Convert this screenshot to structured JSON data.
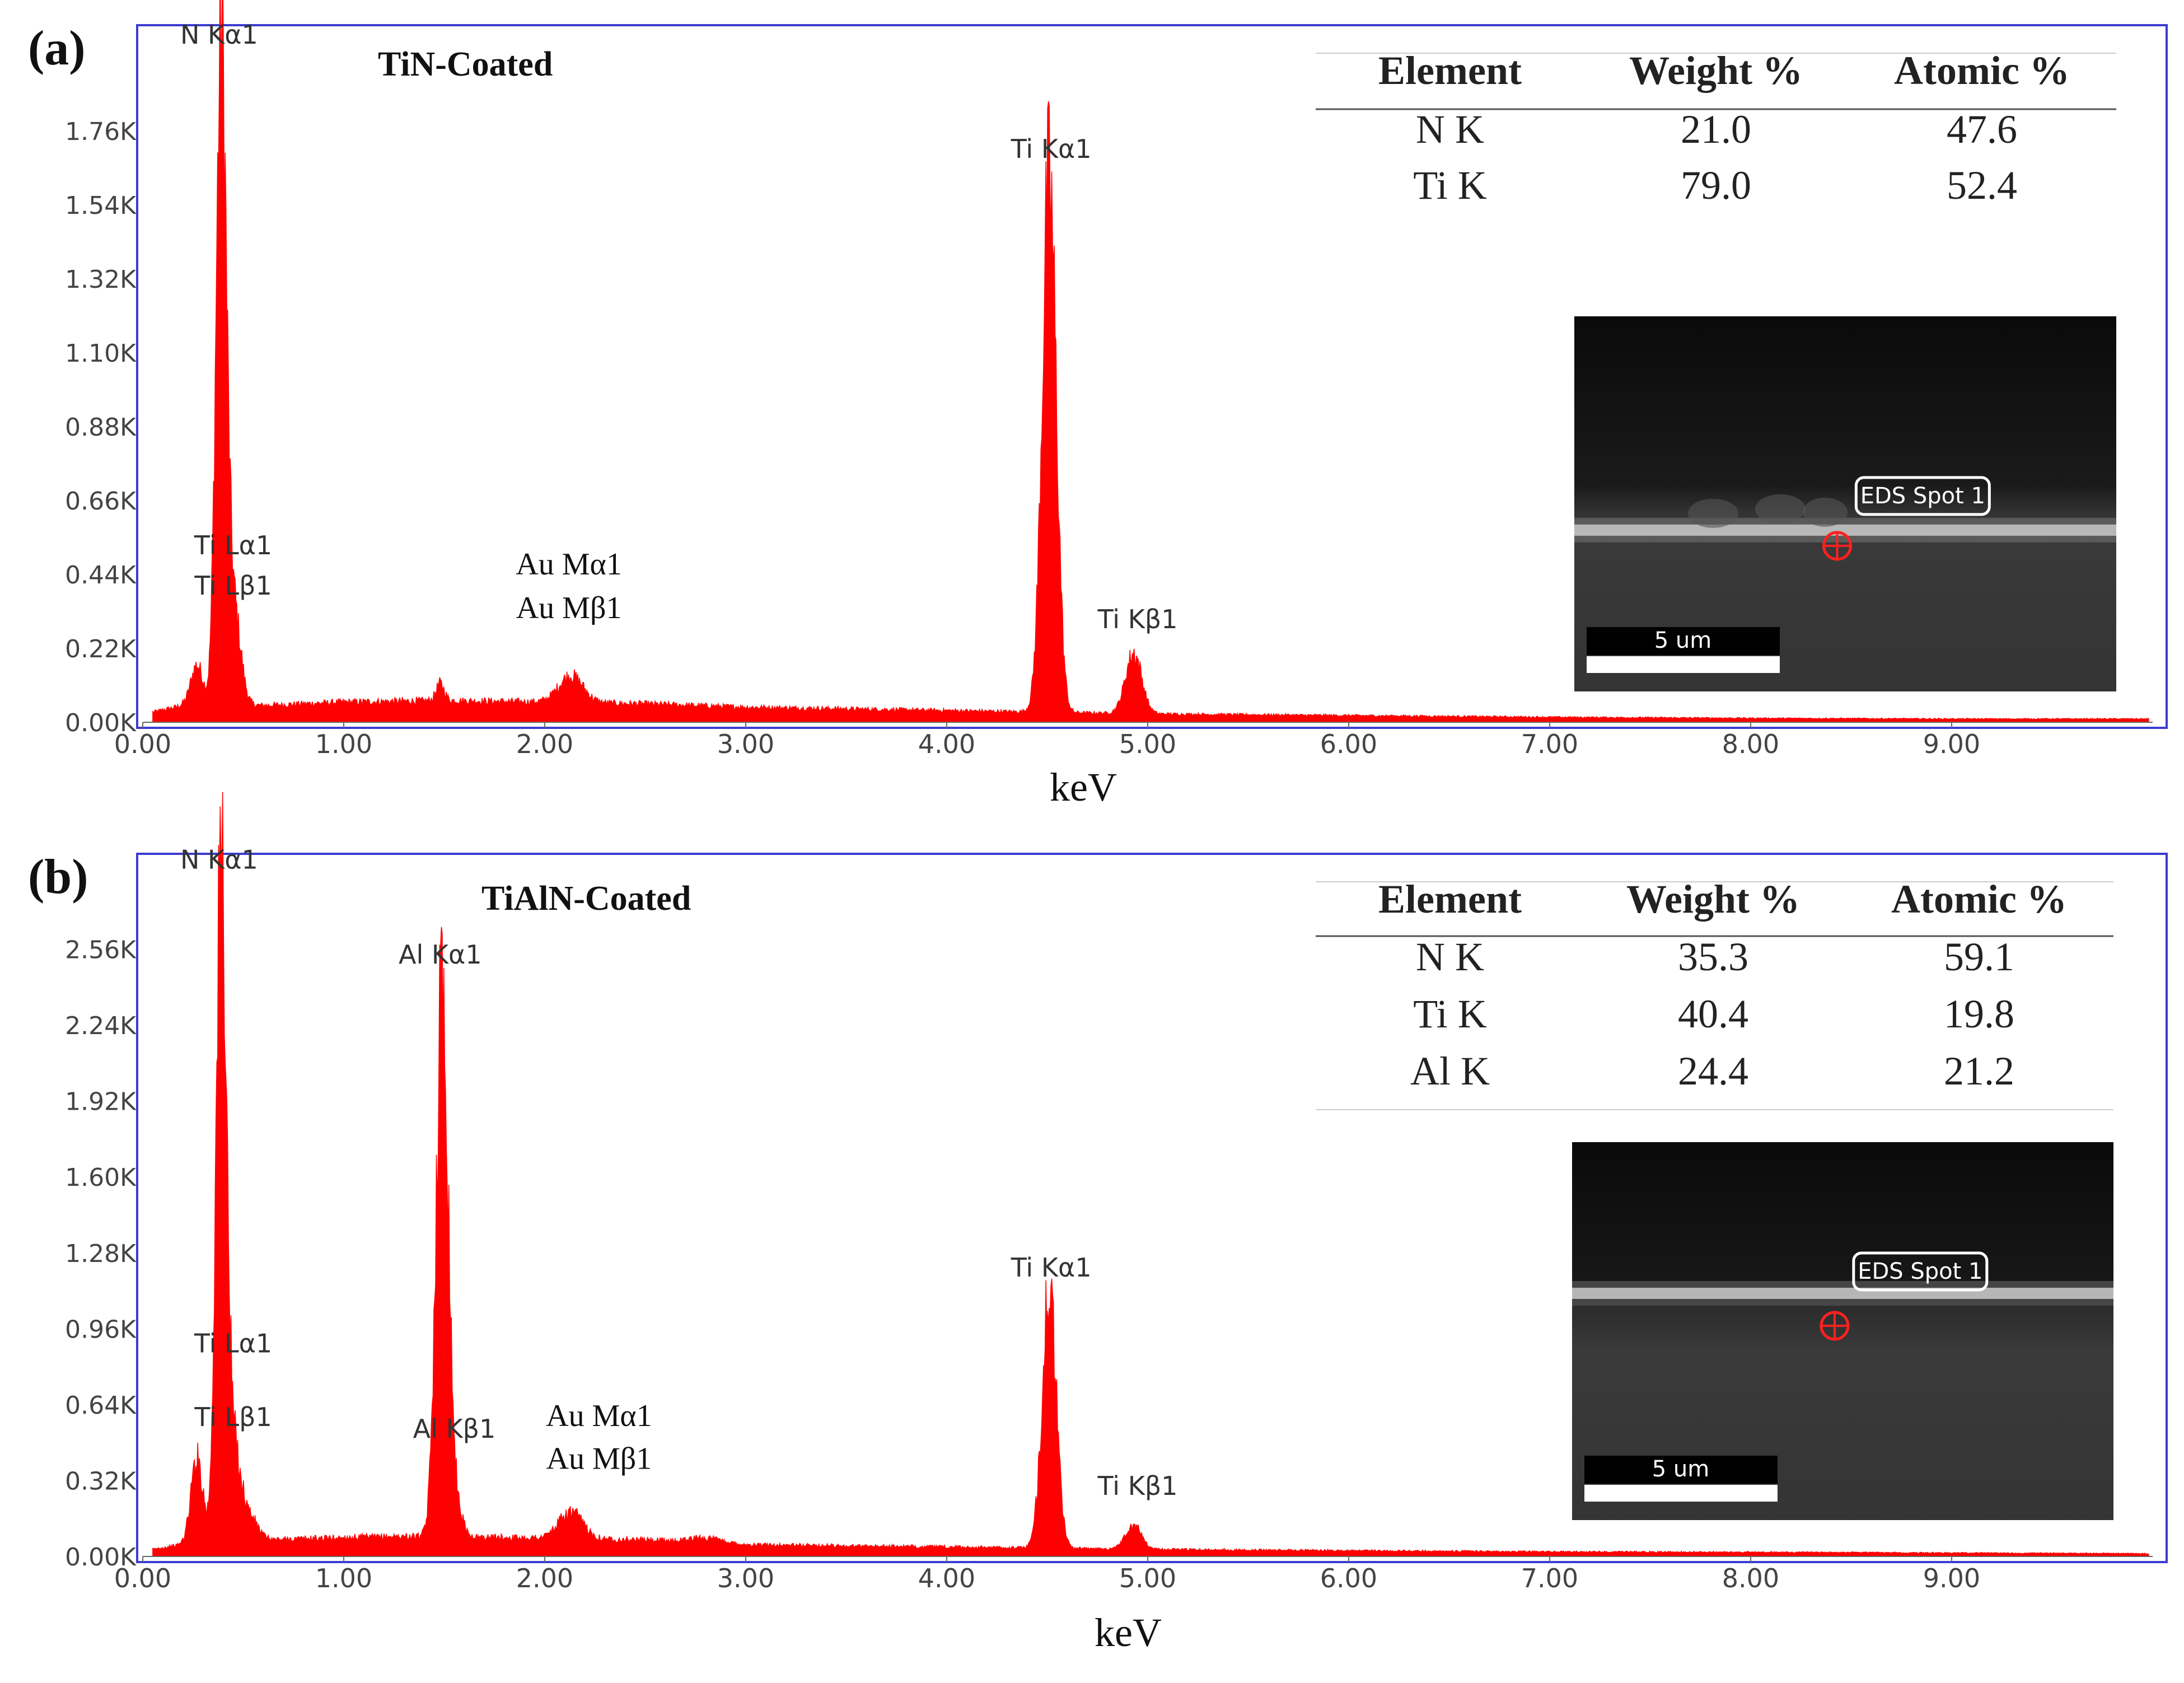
{
  "colors": {
    "spectrum": "#ff0000",
    "frame": "#3c3cd2",
    "axis": "#666666",
    "tick_text": "#444444",
    "peak_label": "#333333"
  },
  "chart_data": [
    {
      "panel_label": "(a)",
      "type": "area",
      "title": "TiN-Coated",
      "xlabel": "keV",
      "ylabel": "",
      "xlim": [
        0,
        10
      ],
      "ylim": [
        0,
        2.0
      ],
      "x_ticks": [
        "0.00",
        "1.00",
        "2.00",
        "3.00",
        "4.00",
        "5.00",
        "6.00",
        "7.00",
        "8.00",
        "9.00"
      ],
      "y_ticks": [
        "0.00K",
        "0.22K",
        "0.44K",
        "0.66K",
        "0.88K",
        "1.10K",
        "1.32K",
        "1.54K",
        "1.76K"
      ],
      "y_tick_values": [
        0,
        0.22,
        0.44,
        0.66,
        0.88,
        1.1,
        1.32,
        1.54,
        1.76
      ],
      "background": [
        [
          0.05,
          0.03
        ],
        [
          0.2,
          0.05
        ],
        [
          0.6,
          0.05
        ],
        [
          1.0,
          0.06
        ],
        [
          1.5,
          0.065
        ],
        [
          2.0,
          0.06
        ],
        [
          2.5,
          0.055
        ],
        [
          3.0,
          0.045
        ],
        [
          3.5,
          0.04
        ],
        [
          4.0,
          0.035
        ],
        [
          5.0,
          0.025
        ],
        [
          6.0,
          0.02
        ],
        [
          7.0,
          0.015
        ],
        [
          8.0,
          0.012
        ],
        [
          9.0,
          0.01
        ],
        [
          9.98,
          0.01
        ]
      ],
      "peaks": [
        {
          "x": 0.27,
          "y": 0.12,
          "width": 0.03
        },
        {
          "x": 0.39,
          "y": 1.94,
          "width": 0.025
        },
        {
          "x": 0.45,
          "y": 0.3,
          "width": 0.035
        },
        {
          "x": 1.48,
          "y": 0.05,
          "width": 0.02
        },
        {
          "x": 2.13,
          "y": 0.08,
          "width": 0.06
        },
        {
          "x": 4.51,
          "y": 1.58,
          "width": 0.035
        },
        {
          "x": 4.93,
          "y": 0.18,
          "width": 0.04
        }
      ],
      "peak_labels": [
        {
          "text": "N  Kα1",
          "x": 0.38,
          "y": 2.02,
          "font": "sans"
        },
        {
          "text": "Ti Lα1",
          "x": 0.45,
          "y": 0.5,
          "font": "sans"
        },
        {
          "text": "Ti Lβ1",
          "x": 0.45,
          "y": 0.38,
          "font": "sans"
        },
        {
          "text": "Au Mα1",
          "x": 2.12,
          "y": 0.44,
          "font": "serif"
        },
        {
          "text": "Au Mβ1",
          "x": 2.12,
          "y": 0.31,
          "font": "serif"
        },
        {
          "text": "Ti Kα1",
          "x": 4.52,
          "y": 1.68,
          "font": "sans"
        },
        {
          "text": "Ti Kβ1",
          "x": 4.95,
          "y": 0.28,
          "font": "sans"
        }
      ],
      "table": {
        "headers": [
          "Element",
          "Weight %",
          "Atomic %"
        ],
        "rows": [
          [
            "N K",
            "21.0",
            "47.6"
          ],
          [
            "Ti K",
            "79.0",
            "52.4"
          ]
        ]
      },
      "inset": {
        "tag": "EDS Spot 1",
        "scale": "5 um"
      }
    },
    {
      "panel_label": "(b)",
      "type": "area",
      "title": "TiAlN-Coated",
      "xlabel": "keV",
      "ylabel": "",
      "xlim": [
        0,
        10
      ],
      "ylim": [
        0,
        2.88
      ],
      "x_ticks": [
        "0.00",
        "1.00",
        "2.00",
        "3.00",
        "4.00",
        "5.00",
        "6.00",
        "7.00",
        "8.00",
        "9.00"
      ],
      "y_ticks": [
        "0.00K",
        "0.32K",
        "0.64K",
        "0.96K",
        "1.28K",
        "1.60K",
        "1.92K",
        "2.24K",
        "2.56K"
      ],
      "y_tick_values": [
        0,
        0.32,
        0.64,
        0.96,
        1.28,
        1.6,
        1.92,
        2.24,
        2.56
      ],
      "background": [
        [
          0.05,
          0.03
        ],
        [
          0.2,
          0.05
        ],
        [
          0.6,
          0.07
        ],
        [
          1.0,
          0.08
        ],
        [
          1.3,
          0.085
        ],
        [
          1.8,
          0.08
        ],
        [
          2.5,
          0.07
        ],
        [
          3.0,
          0.05
        ],
        [
          3.5,
          0.045
        ],
        [
          4.0,
          0.04
        ],
        [
          5.0,
          0.03
        ],
        [
          6.0,
          0.025
        ],
        [
          7.0,
          0.02
        ],
        [
          8.0,
          0.018
        ],
        [
          9.0,
          0.015
        ],
        [
          9.98,
          0.012
        ]
      ],
      "peaks": [
        {
          "x": 0.27,
          "y": 0.36,
          "width": 0.03
        },
        {
          "x": 0.39,
          "y": 2.84,
          "width": 0.025
        },
        {
          "x": 0.45,
          "y": 0.4,
          "width": 0.035
        },
        {
          "x": 0.53,
          "y": 0.1,
          "width": 0.04
        },
        {
          "x": 1.49,
          "y": 2.35,
          "width": 0.03
        },
        {
          "x": 1.56,
          "y": 0.12,
          "width": 0.03
        },
        {
          "x": 2.13,
          "y": 0.11,
          "width": 0.06
        },
        {
          "x": 2.8,
          "y": 0.02,
          "width": 0.08
        },
        {
          "x": 4.51,
          "y": 1.08,
          "width": 0.035
        },
        {
          "x": 4.93,
          "y": 0.1,
          "width": 0.04
        }
      ],
      "peak_labels": [
        {
          "text": "N  Kα1",
          "x": 0.38,
          "y": 2.9,
          "font": "sans"
        },
        {
          "text": "Al Kα1",
          "x": 1.48,
          "y": 2.5,
          "font": "sans"
        },
        {
          "text": "Ti Lα1",
          "x": 0.45,
          "y": 0.86,
          "font": "sans"
        },
        {
          "text": "Ti Lβ1",
          "x": 0.45,
          "y": 0.55,
          "font": "sans"
        },
        {
          "text": "Al Kβ1",
          "x": 1.55,
          "y": 0.5,
          "font": "sans"
        },
        {
          "text": "Au Mα1",
          "x": 2.27,
          "y": 0.55,
          "font": "serif"
        },
        {
          "text": "Au Mβ1",
          "x": 2.27,
          "y": 0.37,
          "font": "serif"
        },
        {
          "text": "Ti Kα1",
          "x": 4.52,
          "y": 1.18,
          "font": "sans"
        },
        {
          "text": "Ti Kβ1",
          "x": 4.95,
          "y": 0.26,
          "font": "sans"
        }
      ],
      "table": {
        "headers": [
          "Element",
          "Weight %",
          "Atomic %"
        ],
        "rows": [
          [
            "N K",
            "35.3",
            "59.1"
          ],
          [
            "Ti K",
            "40.4",
            "19.8"
          ],
          [
            "Al K",
            "24.4",
            "21.2"
          ]
        ]
      },
      "inset": {
        "tag": "EDS Spot 1",
        "scale": "5 um"
      }
    }
  ]
}
